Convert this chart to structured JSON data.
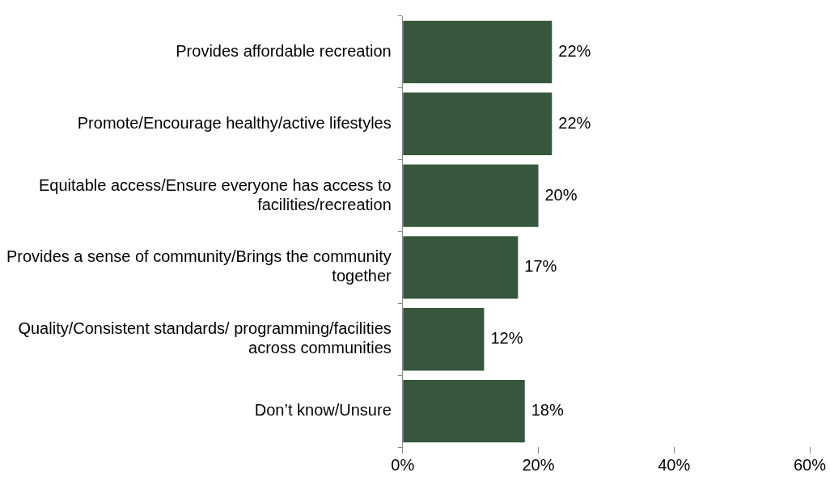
{
  "chart_data": {
    "type": "bar",
    "orientation": "horizontal",
    "categories": [
      "Provides affordable recreation",
      "Promote/Encourage healthy/active lifestyles",
      "Equitable access/Ensure everyone has access to facilities/recreation",
      "Provides a sense of community/Brings the community together",
      "Quality/Consistent standards/ programming/facilities across communities",
      "Don’t know/Unsure"
    ],
    "values": [
      22,
      22,
      20,
      17,
      12,
      18
    ],
    "value_labels": [
      "22%",
      "22%",
      "20%",
      "17%",
      "12%",
      "18%"
    ],
    "color": "#36573d",
    "xlim": [
      0,
      60
    ],
    "xticks": [
      {
        "value": 0,
        "label": "0%"
      },
      {
        "value": 20,
        "label": "20%"
      },
      {
        "value": 40,
        "label": "40%"
      },
      {
        "value": 60,
        "label": "60%"
      }
    ],
    "grid": false,
    "legend": false
  }
}
